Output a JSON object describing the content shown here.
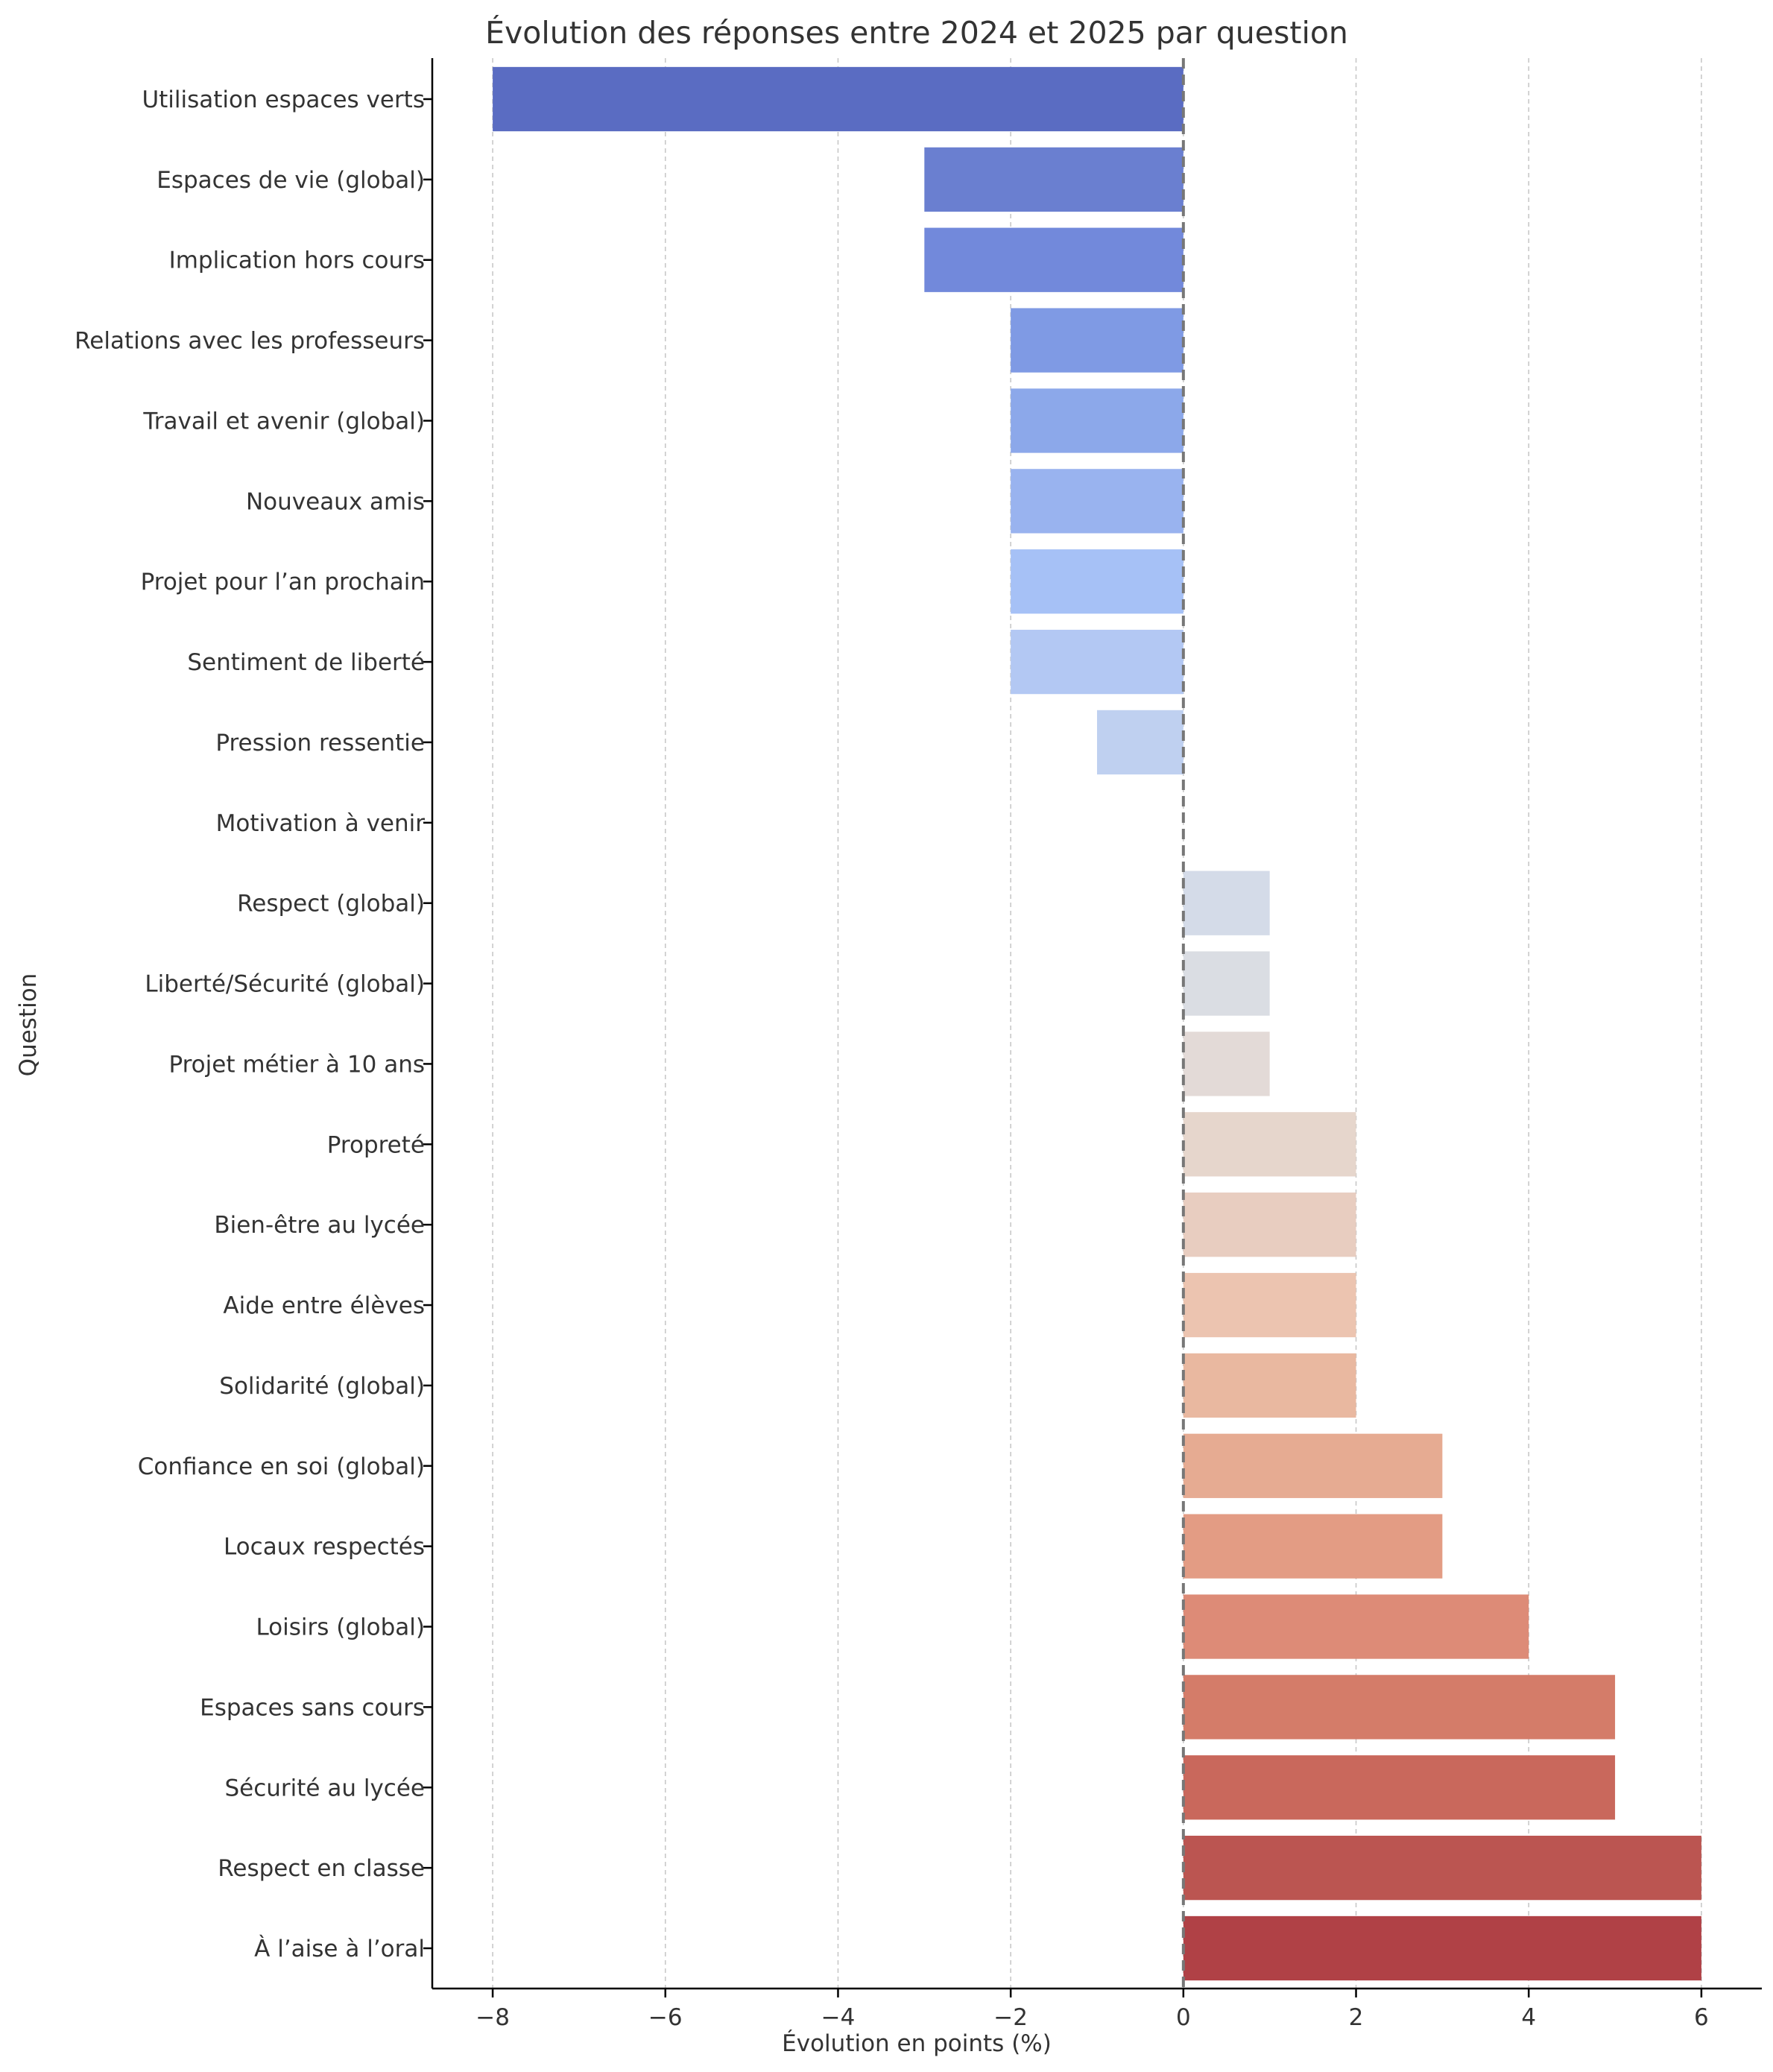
{
  "chart_data": {
    "type": "bar",
    "orientation": "horizontal",
    "title": "Évolution des réponses entre 2024 et 2025 par question",
    "xlabel": "Évolution en points (%)",
    "ylabel": "Question",
    "xlim": [
      -8.7,
      6.7
    ],
    "xticks": [
      -8,
      -6,
      -4,
      -2,
      0,
      2,
      4,
      6
    ],
    "xtick_labels": [
      "−8",
      "−6",
      "−4",
      "−2",
      "0",
      "2",
      "4",
      "6"
    ],
    "grid": "vertical dashed",
    "zero_line": "dashed grey",
    "categories": [
      "Utilisation espaces verts",
      "Espaces de vie (global)",
      "Implication hors cours",
      "Relations avec les professeurs",
      "Travail et avenir (global)",
      "Nouveaux amis",
      "Projet pour l’an prochain",
      "Sentiment de liberté",
      "Pression ressentie",
      "Motivation à venir",
      "Respect (global)",
      "Liberté/Sécurité (global)",
      "Projet métier à 10 ans",
      "Propreté",
      "Bien-être au lycée",
      "Aide entre élèves",
      "Solidarité (global)",
      "Confiance en soi (global)",
      "Locaux respectés",
      "Loisirs (global)",
      "Espaces sans cours",
      "Sécurité au lycée",
      "Respect en classe",
      "À l’aise à l’oral"
    ],
    "values": [
      -8,
      -3,
      -3,
      -2,
      -2,
      -2,
      -2,
      -2,
      -1,
      0,
      1,
      1,
      1,
      2,
      2,
      2,
      2,
      3,
      3,
      4,
      5,
      5,
      6,
      6
    ],
    "colors": [
      "#5a6cc2",
      "#6a7fd0",
      "#7289db",
      "#7f9ae4",
      "#8ca8ea",
      "#99b3ef",
      "#a6c1f6",
      "#b3c8f3",
      "#bfd0f0",
      "#cfd6e4",
      "#d4dbe8",
      "#dadde3",
      "#e3dad7",
      "#e6d6cc",
      "#e8cdc0",
      "#ecc4b0",
      "#e9b8a0",
      "#e6ab92",
      "#e39c84",
      "#dd8b77",
      "#d47c69",
      "#c9685c",
      "#bb5551",
      "#b04146"
    ]
  }
}
